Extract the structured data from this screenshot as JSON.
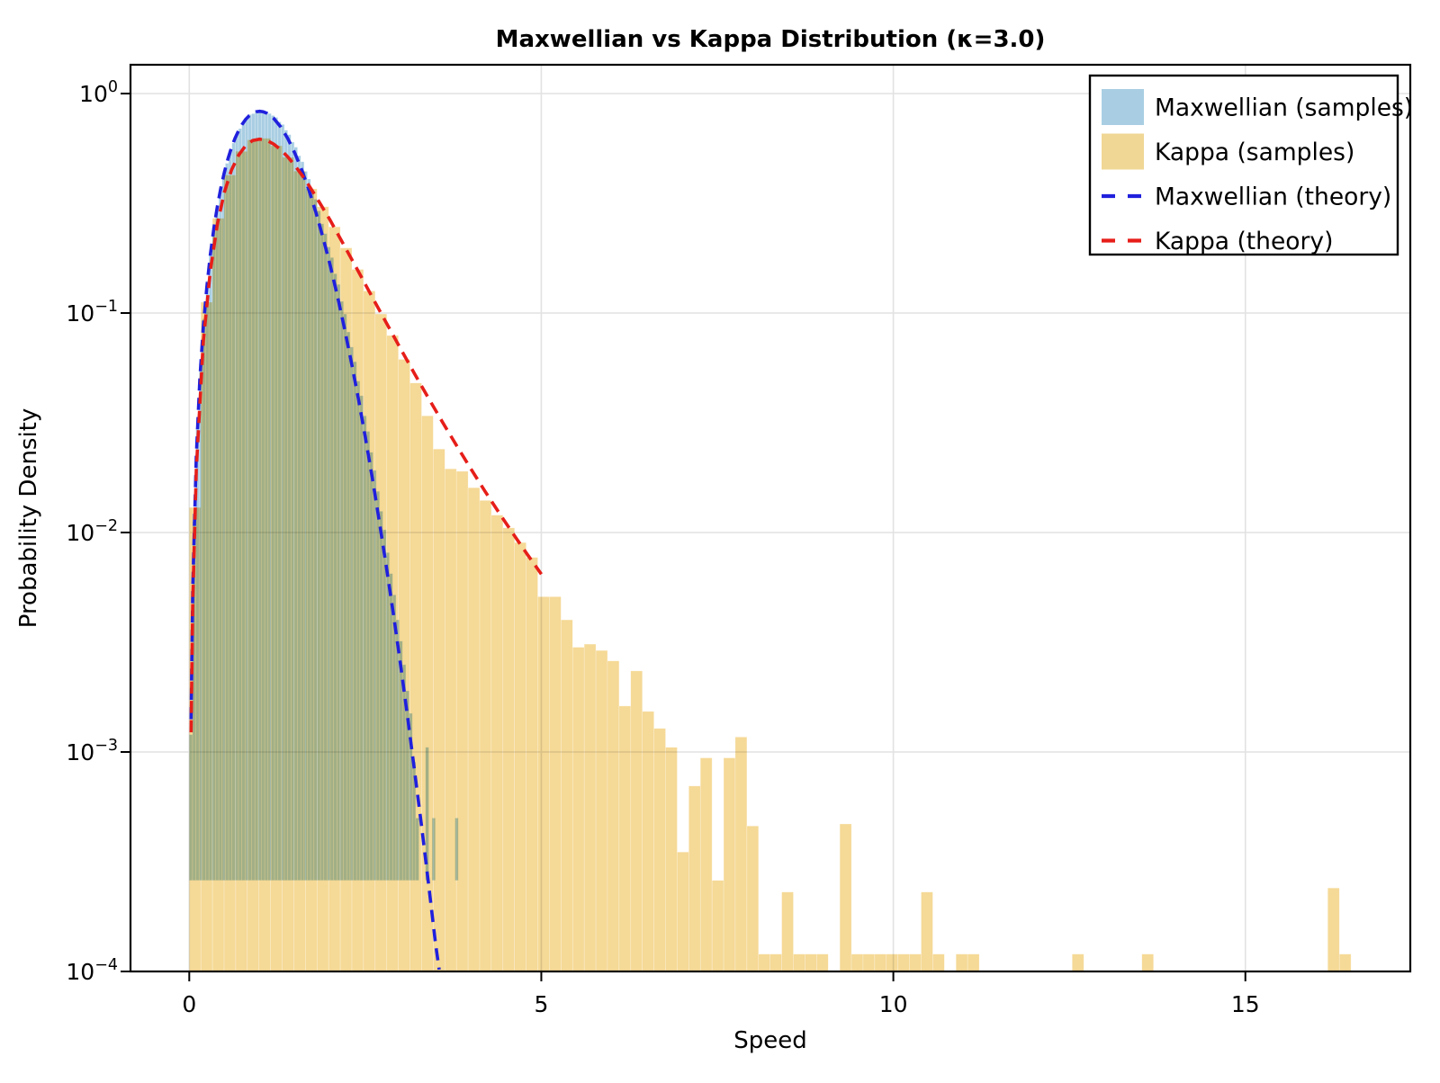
{
  "title": "Maxwellian vs Kappa Distribution (κ=3.0)",
  "xlabel": "Speed",
  "ylabel": "Probability Density",
  "legend": {
    "items": [
      {
        "label": "Maxwellian (samples)",
        "type": "patch",
        "color": "#a9cee3"
      },
      {
        "label": "Kappa (samples)",
        "type": "patch",
        "color": "#f0d795"
      },
      {
        "label": "Maxwellian (theory)",
        "type": "line",
        "color": "#2020dd"
      },
      {
        "label": "Kappa (theory)",
        "type": "line",
        "color": "#e61e19"
      }
    ]
  },
  "colors": {
    "maxwellian_fill": "#a9cee3",
    "kappa_fill": "#f5d996",
    "overlap_fill": "#b3b086",
    "maxwellian_line": "#2020dd",
    "kappa_line": "#e61e19",
    "grid": "#e2e2e2",
    "frame": "#000000"
  },
  "axes": {
    "x_ticks": [
      {
        "v": 0,
        "label": "0"
      },
      {
        "v": 5,
        "label": "5"
      },
      {
        "v": 10,
        "label": "10"
      },
      {
        "v": 15,
        "label": "15"
      }
    ],
    "y_ticks": [
      {
        "d": 1,
        "base": "10",
        "exp": "0"
      },
      {
        "d": 0.1,
        "base": "10",
        "exp": "−1"
      },
      {
        "d": 0.01,
        "base": "10",
        "exp": "−2"
      },
      {
        "d": 0.001,
        "base": "10",
        "exp": "−3"
      },
      {
        "d": 0.0001,
        "base": "10",
        "exp": "−4"
      }
    ]
  },
  "chart_data": {
    "type": "bar",
    "subtype": "histogram-with-theory-curves",
    "title": "Maxwellian vs Kappa Distribution (κ=3.0)",
    "xlabel": "Speed",
    "ylabel": "Probability Density",
    "yscale": "log",
    "xlim": [
      -0.83,
      17.35
    ],
    "ylim": [
      0.0001,
      1.35
    ],
    "grid": true,
    "legend_position": "upper right",
    "series": [
      {
        "name": "Maxwellian (samples)",
        "kind": "histogram",
        "bin_start": 0,
        "bin_width": 0.0466,
        "bar_base_density": 0.00026,
        "densities": [
          0.0012,
          0.0112,
          0.03,
          0.059,
          0.094,
          0.14,
          0.187,
          0.248,
          0.298,
          0.366,
          0.428,
          0.481,
          0.55,
          0.595,
          0.656,
          0.692,
          0.744,
          0.765,
          0.802,
          0.81,
          0.83,
          0.822,
          0.835,
          0.819,
          0.811,
          0.794,
          0.779,
          0.743,
          0.723,
          0.681,
          0.65,
          0.601,
          0.57,
          0.521,
          0.489,
          0.442,
          0.408,
          0.359,
          0.33,
          0.292,
          0.255,
          0.23,
          0.2,
          0.179,
          0.151,
          0.135,
          0.113,
          0.099,
          0.082,
          0.07,
          0.06,
          0.049,
          0.042,
          0.034,
          0.0289,
          0.0232,
          0.0192,
          0.0154,
          0.0125,
          0.0103,
          0.0081,
          0.0065,
          0.0052,
          0.004,
          0.0032,
          0.0025,
          0.0019,
          0.0015,
          0.0009,
          0.0005,
          0,
          0,
          0.00105,
          0,
          0.0005,
          0,
          0,
          0,
          0,
          0,
          0,
          0.0005
        ]
      },
      {
        "name": "Kappa (samples)",
        "kind": "histogram",
        "bin_start": 0,
        "bin_width": 0.165,
        "bar_base_density": 0.0001,
        "densities": [
          0.013,
          0.112,
          0.27,
          0.425,
          0.545,
          0.615,
          0.625,
          0.578,
          0.512,
          0.443,
          0.368,
          0.305,
          0.247,
          0.198,
          0.158,
          0.126,
          0.099,
          0.079,
          0.0615,
          0.048,
          0.034,
          0.024,
          0.0195,
          0.019,
          0.016,
          0.014,
          0.012,
          0.0105,
          0.009,
          0.0077,
          0.0051,
          0.0051,
          0.004,
          0.003,
          0.0031,
          0.0029,
          0.0026,
          0.00162,
          0.00234,
          0.00153,
          0.00128,
          0.00105,
          0.00035,
          0.0007,
          0.00094,
          0.00026,
          0.00094,
          0.00117,
          0.00046,
          0.00012,
          0.00012,
          0.00023,
          0.00012,
          0.00012,
          0.00012,
          0,
          0.00047,
          0.00012,
          0.00012,
          0.00012,
          0.00012,
          0.00012,
          0.00012,
          0.00023,
          0.00012,
          0,
          0.00012,
          0.00012,
          0,
          0,
          0,
          0,
          0,
          0,
          0,
          0,
          0.00012,
          0,
          0,
          0,
          0,
          0,
          0.00012,
          0,
          0,
          0,
          0,
          0,
          0,
          0,
          0,
          0,
          0,
          0,
          0,
          0,
          0,
          0,
          0.00024,
          0.00012
        ]
      },
      {
        "name": "Maxwellian (theory)",
        "kind": "line",
        "style": "dashed",
        "x": [
          0.025,
          0.05,
          0.1,
          0.15,
          0.2,
          0.25,
          0.3,
          0.35,
          0.4,
          0.45,
          0.5,
          0.55,
          0.6,
          0.65,
          0.7,
          0.75,
          0.8,
          0.85,
          0.9,
          0.95,
          1.0,
          1.05,
          1.1,
          1.2,
          1.3,
          1.4,
          1.5,
          1.6,
          1.7,
          1.8,
          1.9,
          2.0,
          2.1,
          2.2,
          2.3,
          2.4,
          2.5,
          2.6,
          2.7,
          2.8,
          2.9,
          3.0,
          3.1,
          3.2,
          3.3,
          3.4,
          3.5,
          3.55
        ],
        "y": [
          0.00141,
          0.00563,
          0.0223,
          0.0497,
          0.0867,
          0.1325,
          0.1856,
          0.2446,
          0.3077,
          0.3732,
          0.4394,
          0.5045,
          0.5669,
          0.625,
          0.6775,
          0.7234,
          0.7617,
          0.7918,
          0.8133,
          0.8261,
          0.8303,
          0.8262,
          0.8144,
          0.77,
          0.7038,
          0.6231,
          0.5352,
          0.4466,
          0.3625,
          0.2864,
          0.2204,
          0.1654,
          0.121,
          0.0864,
          0.0602,
          0.0409,
          0.0272,
          0.0177,
          0.0112,
          0.00697,
          0.00423,
          0.00251,
          0.00145,
          0.00082,
          0.000457,
          0.000248,
          0.000132,
          0.000102
        ]
      },
      {
        "name": "Kappa (theory)",
        "kind": "line",
        "style": "dashed",
        "x": [
          0.025,
          0.05,
          0.1,
          0.2,
          0.3,
          0.4,
          0.5,
          0.6,
          0.7,
          0.8,
          0.9,
          1.0,
          1.1,
          1.2,
          1.3,
          1.4,
          1.5,
          1.6,
          1.7,
          1.8,
          1.9,
          2.0,
          2.2,
          2.4,
          2.6,
          2.8,
          3.0,
          3.2,
          3.4,
          3.6,
          3.8,
          4.0,
          4.2,
          4.4,
          4.6,
          4.8,
          5.0
        ],
        "y": [
          0.00123,
          0.00488,
          0.0193,
          0.0744,
          0.157,
          0.255,
          0.356,
          0.448,
          0.524,
          0.579,
          0.611,
          0.62,
          0.612,
          0.588,
          0.555,
          0.514,
          0.47,
          0.425,
          0.381,
          0.339,
          0.3,
          0.265,
          0.203,
          0.155,
          0.118,
          0.0901,
          0.0689,
          0.0529,
          0.0408,
          0.0317,
          0.0248,
          0.0195,
          0.0154,
          0.0123,
          0.00986,
          0.00796,
          0.00646
        ]
      }
    ]
  }
}
